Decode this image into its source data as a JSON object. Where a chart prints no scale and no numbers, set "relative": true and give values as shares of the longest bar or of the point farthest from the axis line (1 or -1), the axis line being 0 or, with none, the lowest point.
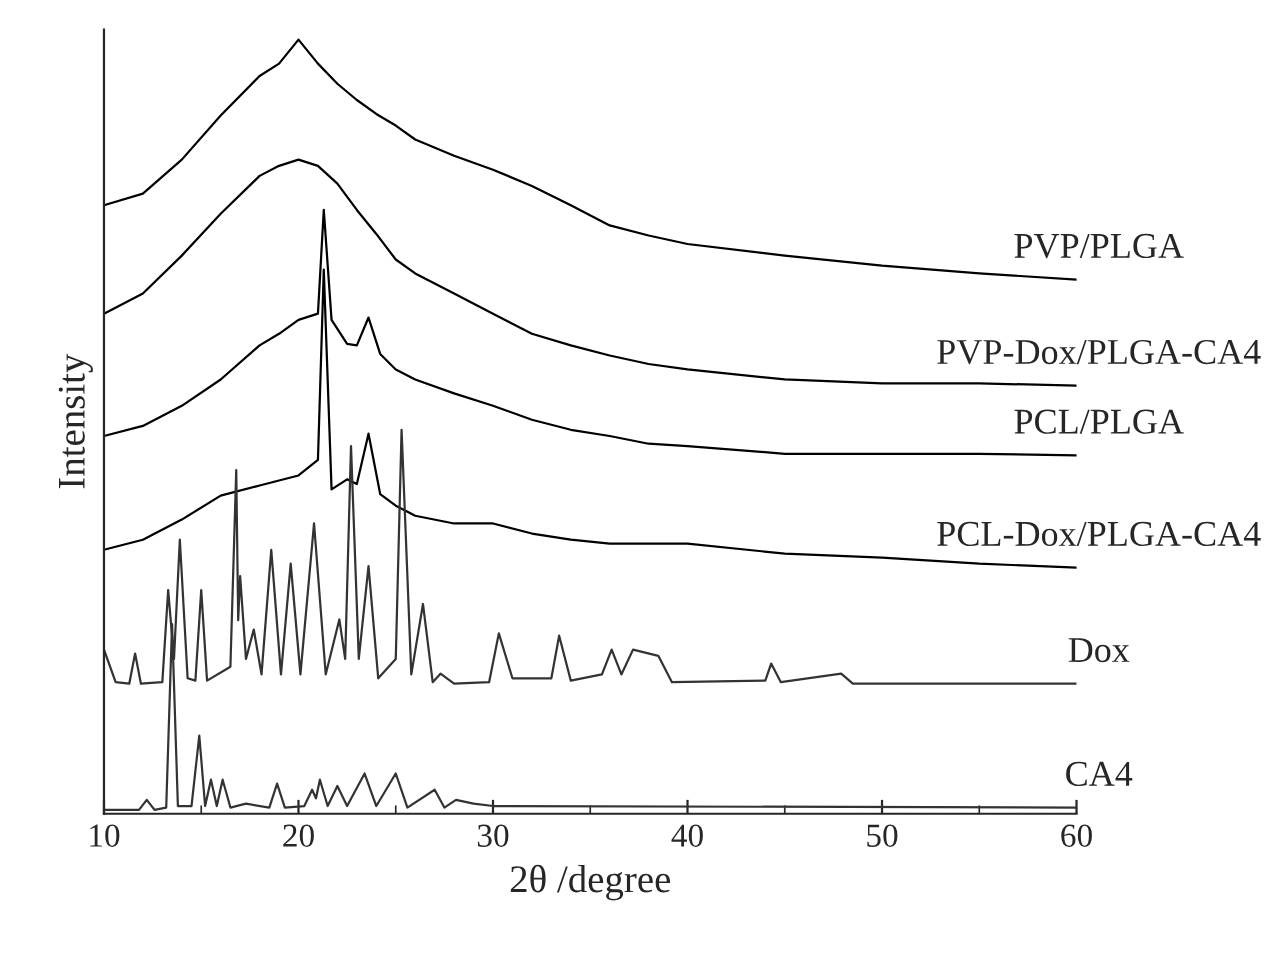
{
  "chart_data": {
    "type": "line",
    "relative": true,
    "xlabel": "2θ /degree",
    "ylabel": "Intensity",
    "xlim": [
      10,
      60
    ],
    "xticks": [
      10,
      20,
      30,
      40,
      50,
      60
    ],
    "grid": false,
    "legend": false,
    "marker": "none",
    "line_style": "solid",
    "series": [
      {
        "name": "PVP/PLGA",
        "color": "#000000",
        "x": [
          10,
          12,
          14,
          16,
          18,
          19,
          20,
          21,
          22,
          23,
          24,
          25,
          26,
          28,
          30,
          32,
          34,
          36,
          38,
          40,
          45,
          50,
          55,
          60
        ],
        "values": [
          0.786,
          0.801,
          0.845,
          0.902,
          0.953,
          0.969,
          1.0,
          0.969,
          0.943,
          0.922,
          0.904,
          0.889,
          0.871,
          0.85,
          0.832,
          0.811,
          0.786,
          0.76,
          0.747,
          0.736,
          0.721,
          0.708,
          0.698,
          0.69
        ]
      },
      {
        "name": "PVP-Dox/PLGA-CA4",
        "color": "#000000",
        "x": [
          10,
          12,
          14,
          16,
          18,
          19,
          20,
          21,
          22,
          23,
          24,
          25,
          26,
          28,
          30,
          32,
          34,
          36,
          38,
          40,
          45,
          50,
          55,
          60
        ],
        "values": [
          0.646,
          0.672,
          0.721,
          0.775,
          0.824,
          0.837,
          0.845,
          0.837,
          0.814,
          0.78,
          0.749,
          0.716,
          0.698,
          0.672,
          0.646,
          0.62,
          0.605,
          0.592,
          0.581,
          0.574,
          0.561,
          0.556,
          0.556,
          0.553
        ]
      },
      {
        "name": "PCL/PLGA",
        "color": "#000000",
        "x": [
          10,
          12,
          14,
          16,
          18,
          19,
          20,
          21,
          21.3,
          21.7,
          22.5,
          23,
          23.6,
          24.2,
          25,
          26,
          28,
          30,
          32,
          34,
          36,
          38,
          40,
          45,
          50,
          55,
          60
        ],
        "values": [
          0.488,
          0.501,
          0.527,
          0.561,
          0.605,
          0.62,
          0.638,
          0.646,
          0.78,
          0.638,
          0.607,
          0.605,
          0.641,
          0.594,
          0.574,
          0.561,
          0.543,
          0.527,
          0.509,
          0.496,
          0.488,
          0.478,
          0.475,
          0.465,
          0.465,
          0.465,
          0.463
        ]
      },
      {
        "name": "PCL-Dox/PLGA-CA4",
        "color": "#000000",
        "x": [
          10,
          12,
          14,
          16,
          18,
          20,
          21,
          21.3,
          21.7,
          22.5,
          23,
          23.6,
          24.2,
          25,
          26,
          28,
          30,
          32,
          34,
          36,
          38,
          40,
          45,
          50,
          55,
          60
        ],
        "values": [
          0.341,
          0.354,
          0.38,
          0.411,
          0.424,
          0.437,
          0.457,
          0.703,
          0.419,
          0.432,
          0.426,
          0.491,
          0.413,
          0.398,
          0.385,
          0.375,
          0.375,
          0.362,
          0.354,
          0.349,
          0.349,
          0.349,
          0.336,
          0.331,
          0.323,
          0.318
        ]
      },
      {
        "name": "Dox",
        "color": "#333333",
        "x": [
          10,
          10.6,
          11.3,
          11.6,
          11.9,
          13.0,
          13.3,
          13.6,
          13.9,
          14.3,
          14.7,
          15.0,
          15.3,
          16.5,
          16.8,
          16.9,
          17.0,
          17.3,
          17.7,
          18.1,
          18.6,
          19.1,
          19.6,
          20.1,
          20.8,
          21.4,
          22.1,
          22.4,
          22.7,
          23.1,
          23.6,
          24.1,
          25.0,
          25.3,
          25.8,
          26.4,
          26.9,
          27.3,
          28.0,
          29.8,
          30.3,
          31.0,
          33.0,
          33.4,
          34.0,
          35.6,
          36.1,
          36.6,
          37.2,
          38.5,
          39.2,
          44.0,
          44.3,
          44.8,
          47.9,
          48.5,
          60
        ],
        "values": [
          0.212,
          0.17,
          0.168,
          0.207,
          0.168,
          0.17,
          0.289,
          0.2,
          0.354,
          0.175,
          0.172,
          0.289,
          0.172,
          0.19,
          0.444,
          0.25,
          0.307,
          0.2,
          0.238,
          0.18,
          0.341,
          0.18,
          0.323,
          0.18,
          0.375,
          0.18,
          0.251,
          0.2,
          0.475,
          0.2,
          0.32,
          0.175,
          0.2,
          0.496,
          0.18,
          0.271,
          0.17,
          0.181,
          0.168,
          0.17,
          0.233,
          0.175,
          0.175,
          0.23,
          0.172,
          0.18,
          0.212,
          0.18,
          0.212,
          0.204,
          0.17,
          0.172,
          0.194,
          0.17,
          0.181,
          0.168,
          0.168
        ]
      },
      {
        "name": "CA4",
        "color": "#333333",
        "x": [
          10,
          11.8,
          12.2,
          12.6,
          13.2,
          13.5,
          13.8,
          14.5,
          14.9,
          15.2,
          15.5,
          15.8,
          16.1,
          16.5,
          17.3,
          18.5,
          18.9,
          19.3,
          20.3,
          20.7,
          20.9,
          21.1,
          21.5,
          22.0,
          22.5,
          23.4,
          24.0,
          25.0,
          25.6,
          27.0,
          27.5,
          28.1,
          29,
          30,
          60
        ],
        "values": [
          0.005,
          0.005,
          0.018,
          0.005,
          0.008,
          0.245,
          0.01,
          0.01,
          0.101,
          0.01,
          0.044,
          0.01,
          0.044,
          0.008,
          0.013,
          0.008,
          0.039,
          0.008,
          0.01,
          0.031,
          0.02,
          0.044,
          0.01,
          0.036,
          0.01,
          0.052,
          0.01,
          0.052,
          0.008,
          0.031,
          0.008,
          0.018,
          0.013,
          0.01,
          0.008
        ]
      }
    ]
  }
}
